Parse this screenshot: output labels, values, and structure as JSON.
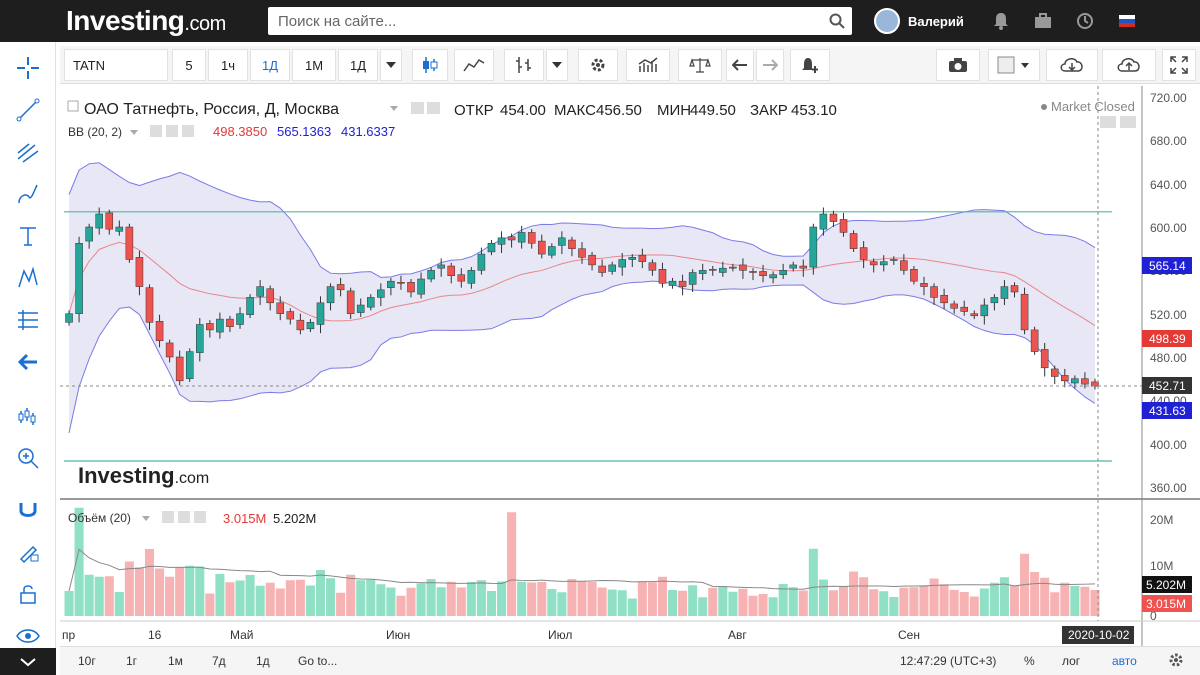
{
  "header": {
    "logo_main": "Investing",
    "logo_suffix": ".com",
    "search_placeholder": "Поиск на сайте...",
    "user_name": "Валерий"
  },
  "toolbar": {
    "symbol": "TATN",
    "intervals": [
      "5",
      "1ч",
      "1Д",
      "1М",
      "1Д"
    ],
    "active_interval_index": 2
  },
  "legend": {
    "title": "ОАО Татнефть, Россия, Д, Москва",
    "open_label": "ОТКР",
    "open": "454.00",
    "high_label": "МАКС",
    "high": "456.50",
    "low_label": "МИН",
    "low": "449.50",
    "close_label": "ЗАКР",
    "close": "453.10",
    "market_status": "Market Closed",
    "bb_label": "BB (20, 2)",
    "bb_mid": "498.3850",
    "bb_upper": "565.1363",
    "bb_lower": "431.6337",
    "vol_label": "Объём (20)",
    "vol_value": "3.015M",
    "vol_ma": "5.202M",
    "watermark_main": "Investing",
    "watermark_suffix": ".com"
  },
  "price_axis": {
    "ticks": [
      "720.00",
      "680.00",
      "640.00",
      "600.00",
      "560.00",
      "520.00",
      "480.00",
      "440.00",
      "400.00",
      "360.00"
    ],
    "badges": {
      "upper": "565.14",
      "mid": "498.39",
      "last": "452.71",
      "lower": "431.63"
    }
  },
  "volume_axis": {
    "ticks": [
      "20M",
      "10M",
      "0"
    ],
    "badges": {
      "ma": "5.202M",
      "vol": "3.015M"
    }
  },
  "time_axis": {
    "labels": [
      "пр",
      "16",
      "Май",
      "Июн",
      "Июл",
      "Авг",
      "Сен"
    ],
    "cursor_date": "2020-10-02"
  },
  "bottom": {
    "ranges": [
      "10г",
      "1г",
      "1м",
      "7д",
      "1д",
      "Go to..."
    ],
    "clock": "12:47:29 (UTC+3)",
    "percent": "%",
    "log": "лог",
    "auto": "авто"
  },
  "colors": {
    "up": "#26a69a",
    "down": "#ef5350",
    "band_fill": "#c9c9ea",
    "band_line": "#7b7be8",
    "mid_line": "#e8878a",
    "hline": "#4fb8a3",
    "topbar": "#1e1e1e",
    "accent": "#1a6fd1"
  },
  "chart_data": {
    "type": "candlestick",
    "hlines": [
      614,
      384
    ],
    "closes": [
      520,
      585,
      600,
      612,
      598,
      600,
      570,
      545,
      512,
      495,
      480,
      458,
      485,
      510,
      505,
      515,
      508,
      520,
      535,
      545,
      530,
      520,
      515,
      505,
      512,
      530,
      545,
      542,
      520,
      528,
      535,
      542,
      550,
      548,
      540,
      552,
      560,
      565,
      555,
      550,
      560,
      575,
      585,
      590,
      588,
      595,
      585,
      575,
      582,
      590,
      580,
      572,
      565,
      558,
      565,
      570,
      572,
      568,
      560,
      548,
      550,
      545,
      558,
      560,
      560,
      562,
      563,
      560,
      558,
      555,
      556,
      560,
      565,
      562,
      600,
      612,
      605,
      595,
      580,
      570,
      565,
      568,
      570,
      560,
      550,
      545,
      535,
      530,
      525,
      522,
      518,
      528,
      535,
      545,
      540,
      505,
      485,
      470,
      462,
      458,
      460,
      455,
      453
    ]
  }
}
